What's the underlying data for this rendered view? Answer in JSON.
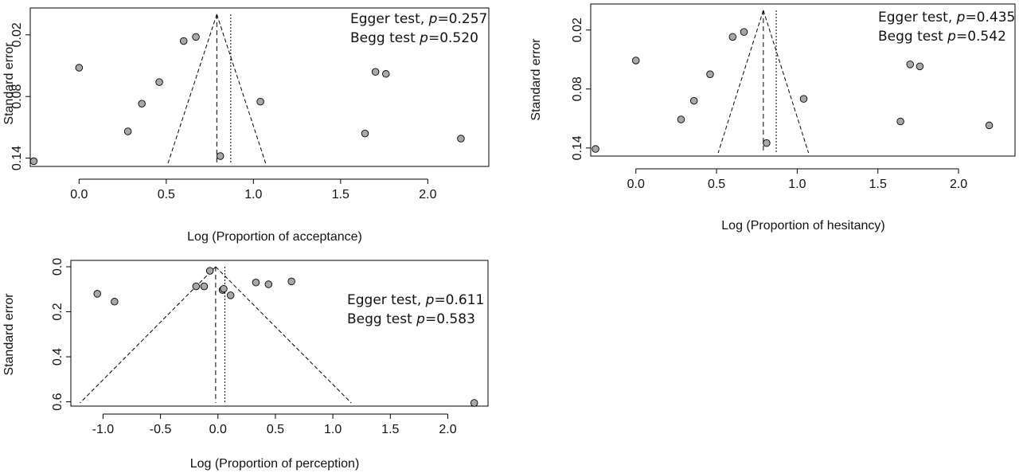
{
  "chart_data": [
    {
      "type": "scatter",
      "xlabel": "Log (Proportion of acceptance)",
      "ylabel": "Standard error",
      "xticks": [
        "0.0",
        "0.5",
        "1.0",
        "1.5",
        "2.0"
      ],
      "yticks": [
        "0.02",
        "0.08",
        "0.14"
      ],
      "xlim": [
        -0.28,
        2.35
      ],
      "ylim": [
        0.0,
        0.145
      ],
      "y_reversed": true,
      "annotations": {
        "egger_prefix": "Egger test, ",
        "egger_p": "p",
        "egger_value": "=0.257",
        "begg_prefix": "Begg test ",
        "begg_p": "p",
        "begg_value": "=0.520"
      },
      "funnel": {
        "apex_x": 0.79,
        "mean_x": 0.79,
        "pooled_x": 0.87,
        "left_bottom_x": 0.51,
        "right_bottom_x": 1.07
      },
      "points": [
        {
          "x": -0.26,
          "y": 0.143
        },
        {
          "x": 0.0,
          "y": 0.052
        },
        {
          "x": 0.28,
          "y": 0.114
        },
        {
          "x": 0.36,
          "y": 0.087
        },
        {
          "x": 0.46,
          "y": 0.066
        },
        {
          "x": 0.6,
          "y": 0.026
        },
        {
          "x": 0.67,
          "y": 0.022
        },
        {
          "x": 0.81,
          "y": 0.138
        },
        {
          "x": 1.04,
          "y": 0.085
        },
        {
          "x": 1.64,
          "y": 0.116
        },
        {
          "x": 1.7,
          "y": 0.056
        },
        {
          "x": 1.76,
          "y": 0.058
        },
        {
          "x": 2.19,
          "y": 0.121
        }
      ]
    },
    {
      "type": "scatter",
      "xlabel": "Log (Proportion of hesitancy)",
      "ylabel": "Standard error",
      "xticks": [
        "0.0",
        "0.5",
        "1.0",
        "1.5",
        "2.0"
      ],
      "yticks": [
        "0.02",
        "0.08",
        "0.14"
      ],
      "xlim": [
        -0.28,
        2.35
      ],
      "ylim": [
        0.0,
        0.145
      ],
      "y_reversed": true,
      "annotations": {
        "egger_prefix": "Egger test, ",
        "egger_p": "p",
        "egger_value": "=0.435",
        "begg_prefix": "Begg test ",
        "begg_p": "p",
        "begg_value": "=0.542"
      },
      "funnel": {
        "apex_x": 0.79,
        "mean_x": 0.79,
        "pooled_x": 0.87,
        "left_bottom_x": 0.51,
        "right_bottom_x": 1.07
      },
      "points": [
        {
          "x": -0.25,
          "y": 0.141
        },
        {
          "x": 0.0,
          "y": 0.051
        },
        {
          "x": 0.28,
          "y": 0.111
        },
        {
          "x": 0.36,
          "y": 0.092
        },
        {
          "x": 0.46,
          "y": 0.065
        },
        {
          "x": 0.6,
          "y": 0.027
        },
        {
          "x": 0.67,
          "y": 0.022
        },
        {
          "x": 0.81,
          "y": 0.135
        },
        {
          "x": 1.04,
          "y": 0.09
        },
        {
          "x": 1.64,
          "y": 0.113
        },
        {
          "x": 1.7,
          "y": 0.055
        },
        {
          "x": 1.76,
          "y": 0.057
        },
        {
          "x": 2.19,
          "y": 0.117
        }
      ]
    },
    {
      "type": "scatter",
      "xlabel": "Log (Proportion of perception)",
      "ylabel": "Standard error",
      "xticks": [
        "-1.0",
        "-0.5",
        "0.0",
        "0.5",
        "1.0",
        "1.5",
        "2.0"
      ],
      "yticks": [
        "0.0",
        "0.2",
        "0.4",
        "0.6"
      ],
      "xlim": [
        -1.28,
        2.35
      ],
      "ylim": [
        0.0,
        0.605
      ],
      "y_reversed": true,
      "annotations": {
        "egger_prefix": "Egger test, ",
        "egger_p": "p",
        "egger_value": "=0.611",
        "begg_prefix": "Begg test ",
        "begg_p": "p",
        "begg_value": "=0.583"
      },
      "funnel": {
        "apex_x": -0.02,
        "mean_x": -0.02,
        "pooled_x": 0.06,
        "left_bottom_x": -1.2,
        "right_bottom_x": 1.16
      },
      "points": [
        {
          "x": -1.05,
          "y": 0.12
        },
        {
          "x": -0.9,
          "y": 0.155
        },
        {
          "x": -0.19,
          "y": 0.087
        },
        {
          "x": -0.12,
          "y": 0.087
        },
        {
          "x": -0.07,
          "y": 0.018
        },
        {
          "x": 0.04,
          "y": 0.103
        },
        {
          "x": 0.05,
          "y": 0.098
        },
        {
          "x": 0.11,
          "y": 0.127
        },
        {
          "x": 0.33,
          "y": 0.07
        },
        {
          "x": 0.44,
          "y": 0.078
        },
        {
          "x": 0.64,
          "y": 0.065
        },
        {
          "x": 2.23,
          "y": 0.605
        }
      ]
    }
  ]
}
